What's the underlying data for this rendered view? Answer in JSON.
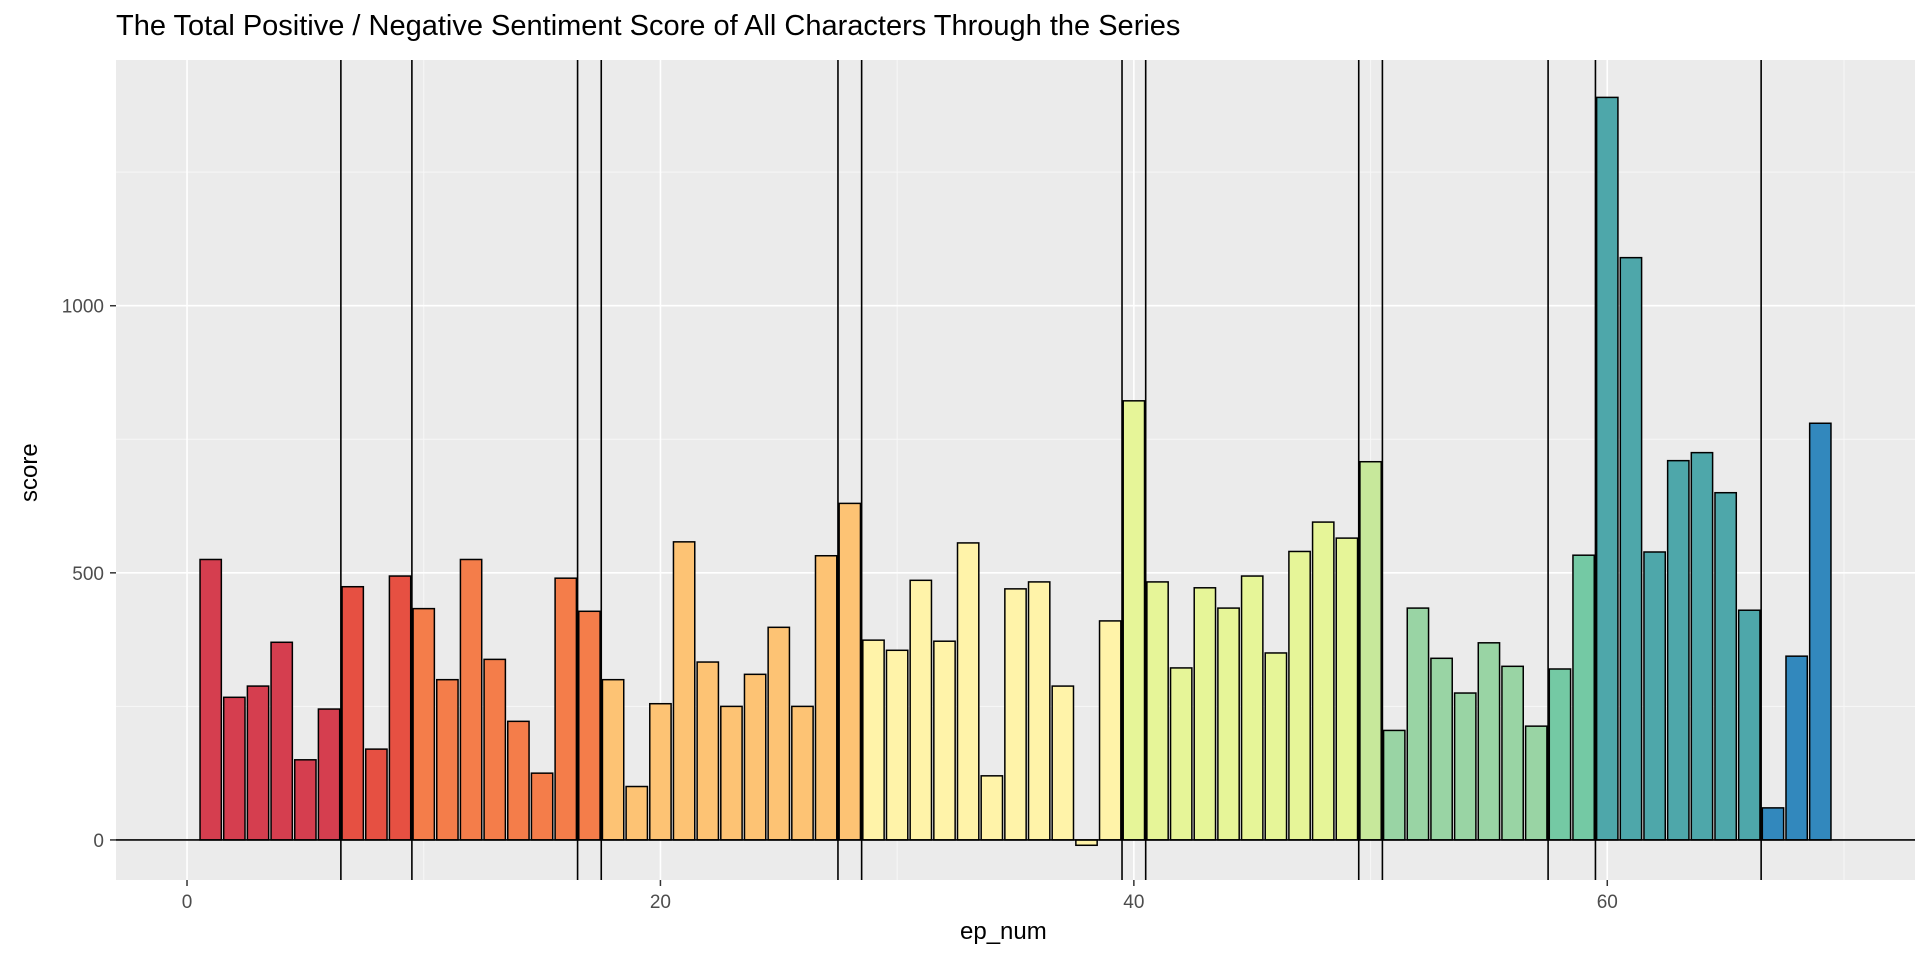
{
  "chart_data": {
    "type": "bar",
    "title": "The Total Positive / Negative Sentiment Score of All Characters Through the Series",
    "xlabel": "ep_num",
    "ylabel": "score",
    "xlim": [
      -3,
      73
    ],
    "ylim": [
      -75,
      1460
    ],
    "x_ticks": [
      0,
      20,
      40,
      60
    ],
    "y_ticks": [
      0,
      500,
      1000
    ],
    "grid": true,
    "baseline": 0,
    "season_breaks": [
      6.5,
      9.5,
      16.5,
      17.5,
      27.5,
      28.5,
      39.5,
      40.5,
      49.5,
      50.5,
      57.5,
      59.5,
      66.5
    ],
    "x": [
      1,
      2,
      3,
      4,
      5,
      6,
      7,
      8,
      9,
      10,
      11,
      12,
      13,
      14,
      15,
      16,
      17,
      18,
      19,
      20,
      21,
      22,
      23,
      24,
      25,
      26,
      27,
      28,
      29,
      30,
      31,
      32,
      33,
      34,
      35,
      36,
      37,
      38,
      39,
      40,
      41,
      42,
      43,
      44,
      45,
      46,
      47,
      48,
      49,
      50,
      51,
      52,
      53,
      54,
      55,
      56,
      57,
      58,
      59,
      60,
      61,
      62,
      63,
      64,
      65,
      66,
      67,
      68,
      69,
      70
    ],
    "values": [
      525,
      267,
      288,
      370,
      150,
      245,
      474,
      170,
      494,
      433,
      300,
      525,
      338,
      222,
      125,
      490,
      428,
      300,
      100,
      255,
      558,
      333,
      250,
      310,
      398,
      250,
      532,
      630,
      374,
      355,
      486,
      372,
      556,
      120,
      470,
      483,
      288,
      -10,
      410,
      822,
      483,
      322,
      472,
      434,
      494,
      350,
      540,
      595,
      565,
      708,
      205,
      434,
      340,
      275,
      369,
      325,
      213,
      320,
      533,
      1390,
      1090,
      539,
      710,
      725,
      650,
      430,
      60,
      344,
      780,
      0
    ],
    "colors": [
      "#d53e4f",
      "#d53e4f",
      "#d53e4f",
      "#d53e4f",
      "#d53e4f",
      "#d53e4f",
      "#e65042",
      "#e65042",
      "#e65042",
      "#f47d4a",
      "#f47d4a",
      "#f47d4a",
      "#f47d4a",
      "#f47d4a",
      "#f47d4a",
      "#f47d4a",
      "#f47d4a",
      "#fdc374",
      "#fdc374",
      "#fdc374",
      "#fdc374",
      "#fdc374",
      "#fdc374",
      "#fdc374",
      "#fdc374",
      "#fdc374",
      "#fdc374",
      "#fdc374",
      "#fff3a9",
      "#fff3a9",
      "#fff3a9",
      "#fff3a9",
      "#fff3a9",
      "#fff3a9",
      "#fff3a9",
      "#fff3a9",
      "#fff3a9",
      "#fff3a9",
      "#fff3a9",
      "#e6f598",
      "#e6f598",
      "#e6f598",
      "#e6f598",
      "#e6f598",
      "#e6f598",
      "#e6f598",
      "#e6f598",
      "#e6f598",
      "#e6f598",
      "#c7e89b",
      "#99d4a4",
      "#99d4a4",
      "#99d4a4",
      "#99d4a4",
      "#99d4a4",
      "#99d4a4",
      "#99d4a4",
      "#74c9a4",
      "#74c9a4",
      "#4ea7aa",
      "#4ea7aa",
      "#4ea7aa",
      "#4ea7aa",
      "#4ea7aa",
      "#4ea7aa",
      "#4ea7aa",
      "#3288bd",
      "#3288bd",
      "#3288bd",
      "#3288bd"
    ]
  }
}
